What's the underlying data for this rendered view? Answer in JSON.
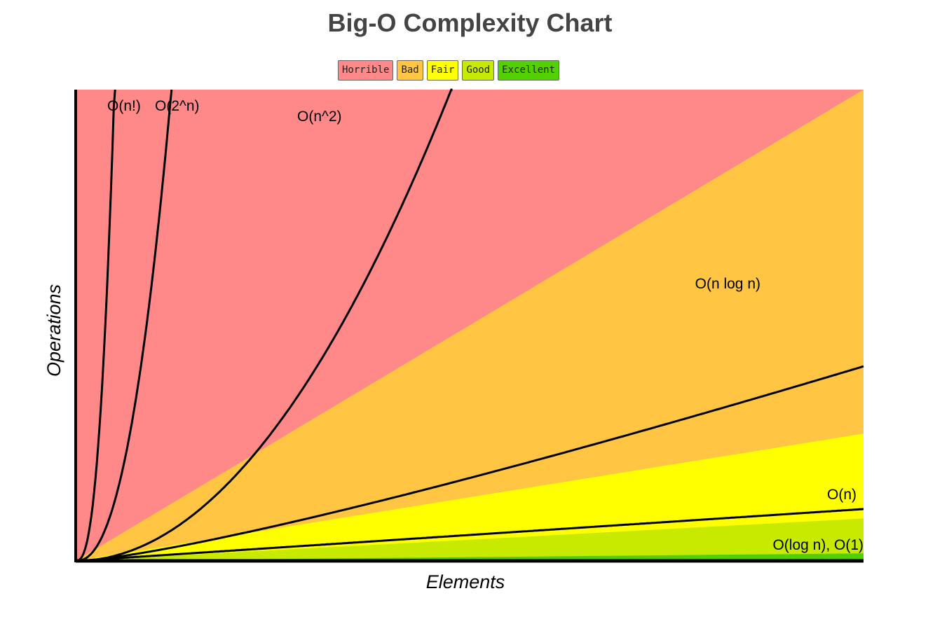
{
  "chart_data": {
    "type": "line",
    "title": "Big-O Complexity Chart",
    "xlabel": "Elements",
    "ylabel": "Operations",
    "xlim": [
      0,
      100
    ],
    "ylim": [
      0,
      1000
    ],
    "grid": false,
    "legend_placement": "top-center",
    "legend": [
      {
        "label": "Horrible",
        "color": "#FF8888"
      },
      {
        "label": "Bad",
        "color": "#FFC543"
      },
      {
        "label": "Fair",
        "color": "#FFFF00"
      },
      {
        "label": "Good",
        "color": "#C8EA00"
      },
      {
        "label": "Excellent",
        "color": "#53D000"
      }
    ],
    "regions": [
      {
        "rating": "Horrible",
        "color": "#FF8888",
        "upper_bound": "top"
      },
      {
        "rating": "Bad",
        "color": "#FFC543",
        "upper_bound": "y = 10x"
      },
      {
        "rating": "Fair",
        "color": "#FFFF00",
        "upper_bound": "y = 2.7x"
      },
      {
        "rating": "Good",
        "color": "#C8EA00",
        "upper_bound": "y = 0.9x"
      },
      {
        "rating": "Excellent",
        "color": "#53D000",
        "upper_bound": "y = 0.16x"
      }
    ],
    "series": [
      {
        "name": "O(n!)",
        "function": "factorial"
      },
      {
        "name": "O(2^n)",
        "function": "exponential"
      },
      {
        "name": "O(n^2)",
        "function": "quadratic"
      },
      {
        "name": "O(n log n)",
        "function": "nlogn"
      },
      {
        "name": "O(n)",
        "function": "linear"
      },
      {
        "name": "O(log n), O(1)",
        "function": "constant"
      }
    ]
  }
}
